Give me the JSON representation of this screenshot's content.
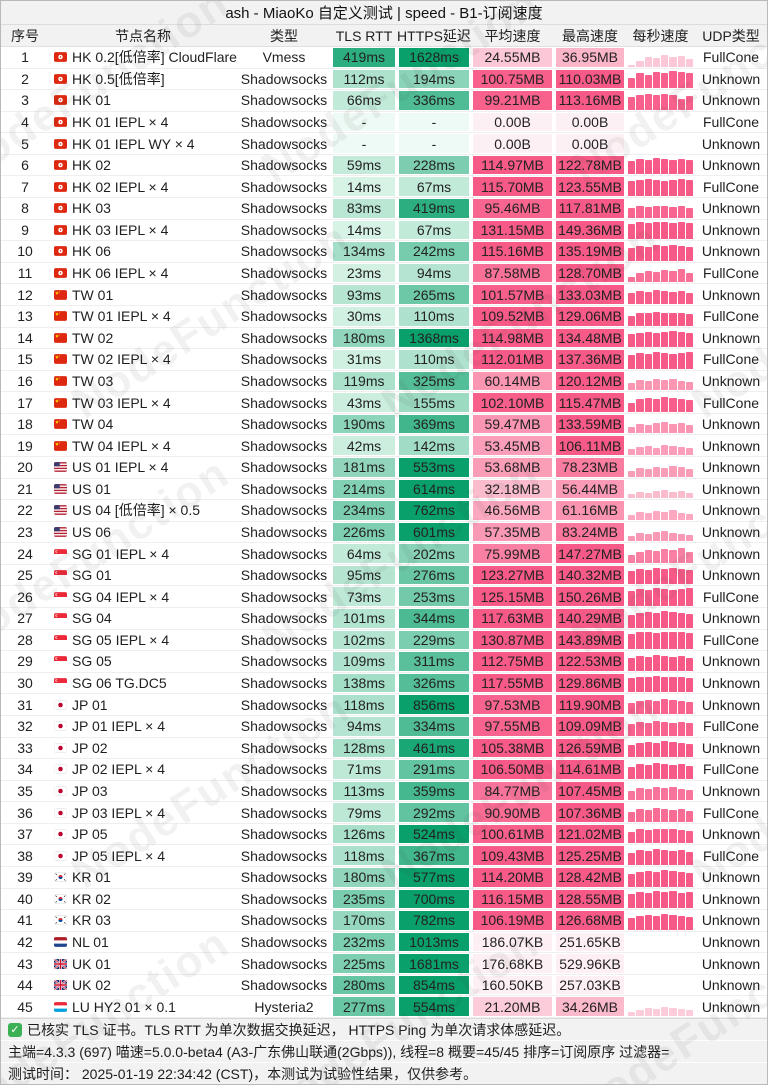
{
  "title": "ash - MiaoKo 自定义测试 | speed - B1-订阅速度",
  "watermark": "NodeFunction",
  "columns": [
    "序号",
    "节点名称",
    "类型",
    "TLS RTT",
    "HTTPS延迟",
    "平均速度",
    "最高速度",
    "每秒速度",
    "UDP类型"
  ],
  "colors": {
    "green_low": "#ddf5e9",
    "green_high": "#0aa06c",
    "green_empty": "#eefaf5",
    "pink_low": "#fdf0f4",
    "pink_high": "#f85a87",
    "header_bg": "#f2f2f2",
    "check_green": "#3cb054"
  },
  "rows": [
    {
      "no": "1",
      "flag": "hk",
      "name": "HK 0.2[低倍率] CloudFlare",
      "type": "Vmess",
      "tls": "419ms",
      "https": "1628ms",
      "avg": "24.55MB",
      "max": "36.95MB",
      "udp": "FullCone",
      "spark": [
        0.1,
        0.3,
        0.5,
        0.45,
        0.6,
        0.5,
        0.55,
        0.4
      ]
    },
    {
      "no": "2",
      "flag": "hk",
      "name": "HK 0.5[低倍率]",
      "type": "Shadowsocks",
      "tls": "112ms",
      "https": "194ms",
      "avg": "100.75MB",
      "max": "110.03MB",
      "udp": "Unknown",
      "spark": [
        0.55,
        0.8,
        0.7,
        0.85,
        0.8,
        0.9,
        0.85,
        0.8
      ]
    },
    {
      "no": "3",
      "flag": "hk",
      "name": "HK 01",
      "type": "Shadowsocks",
      "tls": "66ms",
      "https": "336ms",
      "avg": "99.21MB",
      "max": "113.16MB",
      "udp": "Unknown",
      "spark": [
        0.7,
        0.8,
        0.85,
        0.8,
        0.85,
        0.8,
        0.6,
        0.75
      ]
    },
    {
      "no": "4",
      "flag": "hk",
      "name": "HK 01 IEPL × 4",
      "type": "Shadowsocks",
      "tls": "-",
      "https": "-",
      "avg": "0.00B",
      "max": "0.00B",
      "udp": "FullCone",
      "spark": []
    },
    {
      "no": "5",
      "flag": "hk",
      "name": "HK 01 IEPL WY × 4",
      "type": "Shadowsocks",
      "tls": "-",
      "https": "-",
      "avg": "0.00B",
      "max": "0.00B",
      "udp": "Unknown",
      "spark": []
    },
    {
      "no": "6",
      "flag": "hk",
      "name": "HK 02",
      "type": "Shadowsocks",
      "tls": "59ms",
      "https": "228ms",
      "avg": "114.97MB",
      "max": "122.78MB",
      "udp": "Unknown",
      "spark": [
        0.75,
        0.85,
        0.8,
        0.9,
        0.85,
        0.8,
        0.85,
        0.8
      ]
    },
    {
      "no": "7",
      "flag": "hk",
      "name": "HK 02 IEPL × 4",
      "type": "Shadowsocks",
      "tls": "14ms",
      "https": "67ms",
      "avg": "115.70MB",
      "max": "123.55MB",
      "udp": "FullCone",
      "spark": [
        0.8,
        0.85,
        0.9,
        0.85,
        0.8,
        0.85,
        0.9,
        0.85
      ]
    },
    {
      "no": "8",
      "flag": "hk",
      "name": "HK 03",
      "type": "Shadowsocks",
      "tls": "83ms",
      "https": "419ms",
      "avg": "95.46MB",
      "max": "117.81MB",
      "udp": "Unknown",
      "spark": [
        0.5,
        0.6,
        0.55,
        0.65,
        0.6,
        0.55,
        0.6,
        0.5
      ]
    },
    {
      "no": "9",
      "flag": "hk",
      "name": "HK 03 IEPL × 4",
      "type": "Shadowsocks",
      "tls": "14ms",
      "https": "67ms",
      "avg": "131.15MB",
      "max": "149.36MB",
      "udp": "Unknown",
      "spark": [
        0.8,
        0.9,
        0.85,
        0.95,
        0.9,
        0.85,
        0.9,
        0.85
      ]
    },
    {
      "no": "10",
      "flag": "hk",
      "name": "HK 06",
      "type": "Shadowsocks",
      "tls": "134ms",
      "https": "242ms",
      "avg": "115.16MB",
      "max": "135.19MB",
      "udp": "Unknown",
      "spark": [
        0.7,
        0.8,
        0.75,
        0.85,
        0.8,
        0.85,
        0.8,
        0.75
      ]
    },
    {
      "no": "11",
      "flag": "hk",
      "name": "HK 06 IEPL × 4",
      "type": "Shadowsocks",
      "tls": "23ms",
      "https": "94ms",
      "avg": "87.58MB",
      "max": "128.70MB",
      "udp": "FullCone",
      "spark": [
        0.3,
        0.5,
        0.6,
        0.55,
        0.65,
        0.6,
        0.7,
        0.5
      ]
    },
    {
      "no": "12",
      "flag": "cn",
      "name": "TW 01",
      "type": "Shadowsocks",
      "tls": "93ms",
      "https": "265ms",
      "avg": "101.57MB",
      "max": "133.03MB",
      "udp": "Unknown",
      "spark": [
        0.6,
        0.7,
        0.65,
        0.75,
        0.7,
        0.65,
        0.7,
        0.6
      ]
    },
    {
      "no": "13",
      "flag": "cn",
      "name": "TW 01 IEPL × 4",
      "type": "Shadowsocks",
      "tls": "30ms",
      "https": "110ms",
      "avg": "109.52MB",
      "max": "129.06MB",
      "udp": "FullCone",
      "spark": [
        0.5,
        0.65,
        0.7,
        0.75,
        0.7,
        0.65,
        0.7,
        0.6
      ]
    },
    {
      "no": "14",
      "flag": "cn",
      "name": "TW 02",
      "type": "Shadowsocks",
      "tls": "180ms",
      "https": "1368ms",
      "avg": "114.98MB",
      "max": "134.48MB",
      "udp": "Unknown",
      "spark": [
        0.7,
        0.75,
        0.8,
        0.75,
        0.8,
        0.85,
        0.8,
        0.75
      ]
    },
    {
      "no": "15",
      "flag": "cn",
      "name": "TW 02 IEPL × 4",
      "type": "Shadowsocks",
      "tls": "31ms",
      "https": "110ms",
      "avg": "112.01MB",
      "max": "137.36MB",
      "udp": "FullCone",
      "spark": [
        0.75,
        0.85,
        0.8,
        0.9,
        0.85,
        0.8,
        0.85,
        0.9
      ]
    },
    {
      "no": "16",
      "flag": "cn",
      "name": "TW 03",
      "type": "Shadowsocks",
      "tls": "119ms",
      "https": "325ms",
      "avg": "60.14MB",
      "max": "120.12MB",
      "udp": "Unknown",
      "spark": [
        0.4,
        0.55,
        0.5,
        0.6,
        0.55,
        0.6,
        0.5,
        0.45
      ]
    },
    {
      "no": "17",
      "flag": "cn",
      "name": "TW 03 IEPL × 4",
      "type": "Shadowsocks",
      "tls": "43ms",
      "https": "155ms",
      "avg": "102.10MB",
      "max": "115.47MB",
      "udp": "FullCone",
      "spark": [
        0.5,
        0.7,
        0.75,
        0.7,
        0.8,
        0.75,
        0.7,
        0.65
      ]
    },
    {
      "no": "18",
      "flag": "cn",
      "name": "TW 04",
      "type": "Shadowsocks",
      "tls": "190ms",
      "https": "369ms",
      "avg": "59.47MB",
      "max": "133.59MB",
      "udp": "Unknown",
      "spark": [
        0.35,
        0.5,
        0.45,
        0.55,
        0.6,
        0.5,
        0.55,
        0.45
      ]
    },
    {
      "no": "19",
      "flag": "cn",
      "name": "TW 04 IEPL × 4",
      "type": "Shadowsocks",
      "tls": "42ms",
      "https": "142ms",
      "avg": "53.45MB",
      "max": "106.11MB",
      "udp": "Unknown",
      "spark": [
        0.3,
        0.45,
        0.5,
        0.4,
        0.55,
        0.5,
        0.45,
        0.4
      ]
    },
    {
      "no": "20",
      "flag": "us",
      "name": "US 01 IEPL × 4",
      "type": "Shadowsocks",
      "tls": "181ms",
      "https": "553ms",
      "avg": "53.68MB",
      "max": "78.23MB",
      "udp": "Unknown",
      "spark": [
        0.3,
        0.45,
        0.4,
        0.5,
        0.45,
        0.55,
        0.5,
        0.4
      ]
    },
    {
      "no": "21",
      "flag": "us",
      "name": "US 01",
      "type": "Shadowsocks",
      "tls": "214ms",
      "https": "614ms",
      "avg": "32.18MB",
      "max": "56.44MB",
      "udp": "Unknown",
      "spark": [
        0.2,
        0.35,
        0.3,
        0.4,
        0.45,
        0.35,
        0.4,
        0.3
      ]
    },
    {
      "no": "22",
      "flag": "us",
      "name": "US 04 [低倍率] × 0.5",
      "type": "Shadowsocks",
      "tls": "234ms",
      "https": "762ms",
      "avg": "46.56MB",
      "max": "61.16MB",
      "udp": "Unknown",
      "spark": [
        0.25,
        0.4,
        0.35,
        0.45,
        0.4,
        0.5,
        0.35,
        0.3
      ]
    },
    {
      "no": "23",
      "flag": "us",
      "name": "US 06",
      "type": "Shadowsocks",
      "tls": "226ms",
      "https": "601ms",
      "avg": "57.35MB",
      "max": "83.24MB",
      "udp": "Unknown",
      "spark": [
        0.3,
        0.45,
        0.4,
        0.5,
        0.55,
        0.45,
        0.4,
        0.35
      ]
    },
    {
      "no": "24",
      "flag": "sg",
      "name": "SG 01 IEPL × 4",
      "type": "Shadowsocks",
      "tls": "64ms",
      "https": "202ms",
      "avg": "75.99MB",
      "max": "147.27MB",
      "udp": "Unknown",
      "spark": [
        0.4,
        0.6,
        0.7,
        0.65,
        0.75,
        0.7,
        0.8,
        0.6
      ]
    },
    {
      "no": "25",
      "flag": "sg",
      "name": "SG 01",
      "type": "Shadowsocks",
      "tls": "95ms",
      "https": "276ms",
      "avg": "123.27MB",
      "max": "140.32MB",
      "udp": "Unknown",
      "spark": [
        0.75,
        0.85,
        0.8,
        0.9,
        0.85,
        0.9,
        0.85,
        0.8
      ]
    },
    {
      "no": "26",
      "flag": "sg",
      "name": "SG 04 IEPL × 4",
      "type": "Shadowsocks",
      "tls": "73ms",
      "https": "253ms",
      "avg": "125.15MB",
      "max": "150.26MB",
      "udp": "FullCone",
      "spark": [
        0.8,
        0.9,
        0.85,
        0.95,
        0.9,
        0.85,
        0.9,
        0.95
      ]
    },
    {
      "no": "27",
      "flag": "sg",
      "name": "SG 04",
      "type": "Shadowsocks",
      "tls": "101ms",
      "https": "344ms",
      "avg": "117.63MB",
      "max": "140.29MB",
      "udp": "Unknown",
      "spark": [
        0.7,
        0.8,
        0.85,
        0.8,
        0.9,
        0.85,
        0.8,
        0.75
      ]
    },
    {
      "no": "28",
      "flag": "sg",
      "name": "SG 05 IEPL × 4",
      "type": "Shadowsocks",
      "tls": "102ms",
      "https": "229ms",
      "avg": "130.87MB",
      "max": "143.89MB",
      "udp": "FullCone",
      "spark": [
        0.8,
        0.9,
        0.95,
        0.85,
        0.9,
        0.95,
        0.9,
        0.85
      ]
    },
    {
      "no": "29",
      "flag": "sg",
      "name": "SG 05",
      "type": "Shadowsocks",
      "tls": "109ms",
      "https": "311ms",
      "avg": "112.75MB",
      "max": "122.53MB",
      "udp": "Unknown",
      "spark": [
        0.7,
        0.8,
        0.75,
        0.85,
        0.8,
        0.75,
        0.8,
        0.7
      ]
    },
    {
      "no": "30",
      "flag": "sg",
      "name": "SG 06 TG.DC5",
      "type": "Shadowsocks",
      "tls": "138ms",
      "https": "326ms",
      "avg": "117.55MB",
      "max": "129.86MB",
      "udp": "Unknown",
      "spark": [
        0.75,
        0.85,
        0.8,
        0.9,
        0.85,
        0.8,
        0.85,
        0.75
      ]
    },
    {
      "no": "31",
      "flag": "jp",
      "name": "JP 01",
      "type": "Shadowsocks",
      "tls": "118ms",
      "https": "856ms",
      "avg": "97.53MB",
      "max": "119.90MB",
      "udp": "Unknown",
      "spark": [
        0.6,
        0.7,
        0.75,
        0.7,
        0.8,
        0.75,
        0.7,
        0.65
      ]
    },
    {
      "no": "32",
      "flag": "jp",
      "name": "JP 01 IEPL × 4",
      "type": "Shadowsocks",
      "tls": "94ms",
      "https": "334ms",
      "avg": "97.55MB",
      "max": "109.09MB",
      "udp": "FullCone",
      "spark": [
        0.6,
        0.75,
        0.7,
        0.8,
        0.75,
        0.7,
        0.75,
        0.65
      ]
    },
    {
      "no": "33",
      "flag": "jp",
      "name": "JP 02",
      "type": "Shadowsocks",
      "tls": "128ms",
      "https": "461ms",
      "avg": "105.38MB",
      "max": "126.59MB",
      "udp": "Unknown",
      "spark": [
        0.65,
        0.75,
        0.8,
        0.75,
        0.85,
        0.8,
        0.75,
        0.7
      ]
    },
    {
      "no": "34",
      "flag": "jp",
      "name": "JP 02 IEPL × 4",
      "type": "Shadowsocks",
      "tls": "71ms",
      "https": "291ms",
      "avg": "106.50MB",
      "max": "114.61MB",
      "udp": "FullCone",
      "spark": [
        0.65,
        0.8,
        0.75,
        0.85,
        0.8,
        0.75,
        0.8,
        0.7
      ]
    },
    {
      "no": "35",
      "flag": "jp",
      "name": "JP 03",
      "type": "Shadowsocks",
      "tls": "113ms",
      "https": "359ms",
      "avg": "84.77MB",
      "max": "107.45MB",
      "udp": "Unknown",
      "spark": [
        0.5,
        0.65,
        0.6,
        0.7,
        0.65,
        0.7,
        0.6,
        0.55
      ]
    },
    {
      "no": "36",
      "flag": "jp",
      "name": "JP 03 IEPL × 4",
      "type": "Shadowsocks",
      "tls": "79ms",
      "https": "292ms",
      "avg": "90.90MB",
      "max": "107.36MB",
      "udp": "FullCone",
      "spark": [
        0.55,
        0.7,
        0.65,
        0.75,
        0.7,
        0.65,
        0.7,
        0.6
      ]
    },
    {
      "no": "37",
      "flag": "jp",
      "name": "JP 05",
      "type": "Shadowsocks",
      "tls": "126ms",
      "https": "524ms",
      "avg": "100.61MB",
      "max": "121.02MB",
      "udp": "Unknown",
      "spark": [
        0.6,
        0.75,
        0.7,
        0.8,
        0.75,
        0.8,
        0.7,
        0.65
      ]
    },
    {
      "no": "38",
      "flag": "jp",
      "name": "JP 05 IEPL × 4",
      "type": "Shadowsocks",
      "tls": "118ms",
      "https": "367ms",
      "avg": "109.43MB",
      "max": "125.25MB",
      "udp": "FullCone",
      "spark": [
        0.65,
        0.8,
        0.75,
        0.85,
        0.8,
        0.75,
        0.8,
        0.7
      ]
    },
    {
      "no": "39",
      "flag": "kr",
      "name": "KR 01",
      "type": "Shadowsocks",
      "tls": "180ms",
      "https": "577ms",
      "avg": "114.20MB",
      "max": "128.42MB",
      "udp": "Unknown",
      "spark": [
        0.7,
        0.8,
        0.85,
        0.8,
        0.9,
        0.85,
        0.8,
        0.75
      ]
    },
    {
      "no": "40",
      "flag": "kr",
      "name": "KR 02",
      "type": "Shadowsocks",
      "tls": "235ms",
      "https": "700ms",
      "avg": "116.15MB",
      "max": "128.55MB",
      "udp": "Unknown",
      "spark": [
        0.75,
        0.85,
        0.8,
        0.9,
        0.85,
        0.9,
        0.8,
        0.85
      ]
    },
    {
      "no": "41",
      "flag": "kr",
      "name": "KR 03",
      "type": "Shadowsocks",
      "tls": "170ms",
      "https": "782ms",
      "avg": "106.19MB",
      "max": "126.68MB",
      "udp": "Unknown",
      "spark": [
        0.65,
        0.75,
        0.8,
        0.75,
        0.85,
        0.8,
        0.75,
        0.7
      ]
    },
    {
      "no": "42",
      "flag": "nl",
      "name": "NL 01",
      "type": "Shadowsocks",
      "tls": "232ms",
      "https": "1013ms",
      "avg": "186.07KB",
      "max": "251.65KB",
      "udp": "Unknown",
      "spark": []
    },
    {
      "no": "43",
      "flag": "uk",
      "name": "UK 01",
      "type": "Shadowsocks",
      "tls": "225ms",
      "https": "1681ms",
      "avg": "176.68KB",
      "max": "529.96KB",
      "udp": "Unknown",
      "spark": []
    },
    {
      "no": "44",
      "flag": "uk",
      "name": "UK 02",
      "type": "Shadowsocks",
      "tls": "280ms",
      "https": "854ms",
      "avg": "160.50KB",
      "max": "257.03KB",
      "udp": "Unknown",
      "spark": []
    },
    {
      "no": "45",
      "flag": "lu",
      "name": "LU HY2 01 × 0.1",
      "type": "Hysteria2",
      "tls": "277ms",
      "https": "554ms",
      "avg": "21.20MB",
      "max": "34.26MB",
      "udp": "Unknown",
      "spark": [
        0.2,
        0.35,
        0.45,
        0.4,
        0.5,
        0.45,
        0.4,
        0.3
      ]
    }
  ],
  "footer": {
    "line1": "已核实 TLS 证书。TLS RTT 为单次数据交换延迟， HTTPS Ping 为单次请求体感延迟。",
    "line2": "主端=4.3.3 (697) 喵速=5.0.0-beta4 (A3-广东佛山联通(2Gbps)), 线程=8 概要=45/45 排序=订阅原序 过滤器=",
    "line3": "测试时间： 2025-01-19 22:34:42 (CST)，本测试为试验性结果，仅供参考。"
  }
}
